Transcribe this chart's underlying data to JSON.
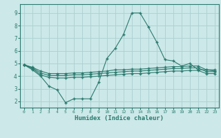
{
  "xlabel": "Humidex (Indice chaleur)",
  "x": [
    0,
    1,
    2,
    3,
    4,
    5,
    6,
    7,
    8,
    9,
    10,
    11,
    12,
    13,
    14,
    15,
    16,
    17,
    18,
    19,
    20,
    21,
    22,
    23
  ],
  "line1": [
    4.9,
    4.5,
    4.0,
    3.2,
    2.9,
    1.9,
    2.2,
    2.2,
    2.2,
    3.5,
    5.4,
    6.2,
    7.3,
    9.0,
    9.0,
    7.9,
    6.7,
    5.3,
    5.2,
    4.8,
    5.0,
    4.5,
    4.5,
    4.4
  ],
  "line2": [
    4.9,
    4.6,
    4.1,
    3.9,
    3.85,
    3.85,
    3.9,
    3.9,
    3.95,
    4.0,
    4.05,
    4.1,
    4.15,
    4.2,
    4.2,
    4.25,
    4.3,
    4.35,
    4.4,
    4.4,
    4.45,
    4.45,
    4.2,
    4.2
  ],
  "line3": [
    4.9,
    4.65,
    4.25,
    4.05,
    4.05,
    4.05,
    4.1,
    4.1,
    4.15,
    4.2,
    4.25,
    4.3,
    4.35,
    4.4,
    4.4,
    4.45,
    4.5,
    4.55,
    4.6,
    4.6,
    4.65,
    4.65,
    4.35,
    4.35
  ],
  "line4": [
    4.9,
    4.7,
    4.4,
    4.2,
    4.2,
    4.2,
    4.25,
    4.25,
    4.3,
    4.35,
    4.4,
    4.5,
    4.5,
    4.55,
    4.55,
    4.6,
    4.65,
    4.7,
    4.75,
    4.75,
    4.8,
    4.8,
    4.5,
    4.5
  ],
  "line_color": "#2a7a6e",
  "bg_color": "#cce8e8",
  "grid_color": "#aacfcf",
  "xlim": [
    -0.5,
    23.5
  ],
  "ylim": [
    1.5,
    9.7
  ],
  "yticks": [
    2,
    3,
    4,
    5,
    6,
    7,
    8,
    9
  ],
  "xticks": [
    0,
    1,
    2,
    3,
    4,
    5,
    6,
    7,
    8,
    9,
    10,
    11,
    12,
    13,
    14,
    15,
    16,
    17,
    18,
    19,
    20,
    21,
    22,
    23
  ]
}
